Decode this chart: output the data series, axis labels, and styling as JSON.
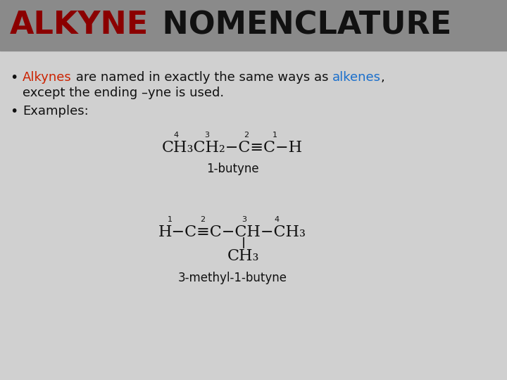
{
  "title_alkyne": "ALKYNE",
  "title_nomenclature": " NOMENCLATURE",
  "title_bg": "#8a8a8a",
  "title_fg_alkyne": "#8B0000",
  "title_fg_rest": "#111111",
  "body_bg": "#d0d0d0",
  "title_fontsize": 32,
  "body_fontsize": 13,
  "chem_fontsize": 15,
  "small_fontsize": 8,
  "name_fontsize": 12,
  "bullet1_parts": [
    {
      "text": "Alkynes",
      "color": "#cc2200"
    },
    {
      "text": " are named in exactly the same ways as ",
      "color": "#111111"
    },
    {
      "text": "alkenes",
      "color": "#1a6fcc"
    },
    {
      "text": ",",
      "color": "#111111"
    }
  ],
  "bullet1_line2": "except the ending –yne is used.",
  "bullet2": "Examples:",
  "label1_numbers": [
    "4",
    "3",
    "2",
    "1"
  ],
  "name1": "1-butyne",
  "label2_numbers": [
    "1",
    "2",
    "3",
    "4"
  ],
  "branch": "CH₃",
  "name2": "3-methyl-1-butyne"
}
